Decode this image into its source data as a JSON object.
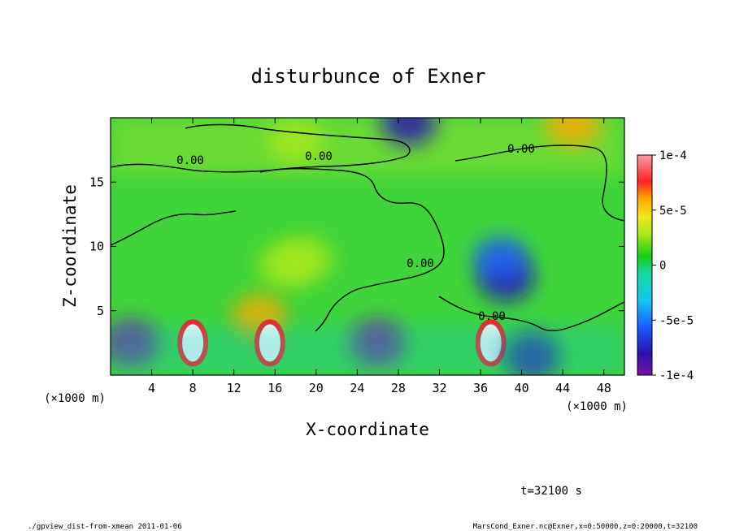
{
  "chart_data": {
    "type": "heatmap",
    "title": "disturbunce of Exner",
    "xlabel": "X-coordinate",
    "ylabel": "Z-coordinate",
    "x_unit": "(×1000 m)",
    "z_unit": "(×1000 m)",
    "xlim": [
      0,
      50
    ],
    "ylim": [
      0,
      20
    ],
    "x_ticks": [
      4,
      8,
      12,
      16,
      20,
      24,
      28,
      32,
      36,
      40,
      44,
      48
    ],
    "y_ticks": [
      5,
      10,
      15
    ],
    "colorbar": {
      "min": -0.0001,
      "max": 0.0001,
      "tick_labels": [
        "1e-4",
        "5e-5",
        "0",
        "-5e-5",
        "-1e-4"
      ],
      "tick_values": [
        0.0001,
        5e-05,
        0,
        -5e-05,
        -0.0001
      ]
    },
    "contour_labels": [
      "0.00",
      "0.00",
      "0.00",
      "0.00",
      "0.00"
    ],
    "features": [
      {
        "x": 17,
        "z": 8.5,
        "value": 4e-05
      },
      {
        "x": 19,
        "z": 9.0,
        "value": 3.5e-05
      },
      {
        "x": 14.5,
        "z": 4.5,
        "value": 6e-05
      },
      {
        "x": 38.5,
        "z": 7.5,
        "value": -8e-05
      },
      {
        "x": 38,
        "z": 9.0,
        "value": -5e-05
      },
      {
        "x": 29,
        "z": 19.6,
        "value": -7e-05
      },
      {
        "x": 45,
        "z": 19.5,
        "value": 7e-05
      },
      {
        "x": 18,
        "z": 18.2,
        "value": 3e-05
      },
      {
        "x": 8,
        "z": 2.5,
        "value": 0.00012
      },
      {
        "x": 15.5,
        "z": 2.5,
        "value": 0.00012
      },
      {
        "x": 37,
        "z": 2.5,
        "value": 0.00012
      },
      {
        "x": 2,
        "z": 2.5,
        "value": -9e-05
      },
      {
        "x": 26,
        "z": 2.5,
        "value": -9e-05
      },
      {
        "x": 41,
        "z": 1.5,
        "value": -8e-05
      }
    ]
  },
  "annotations": {
    "time": "t=32100 s",
    "footer_left": "./gpview_dist-from-xmean  2011-01-06",
    "footer_right": "MarsCond_Exner.nc@Exner,x=0:50000,z=0:20000,t=32100"
  }
}
